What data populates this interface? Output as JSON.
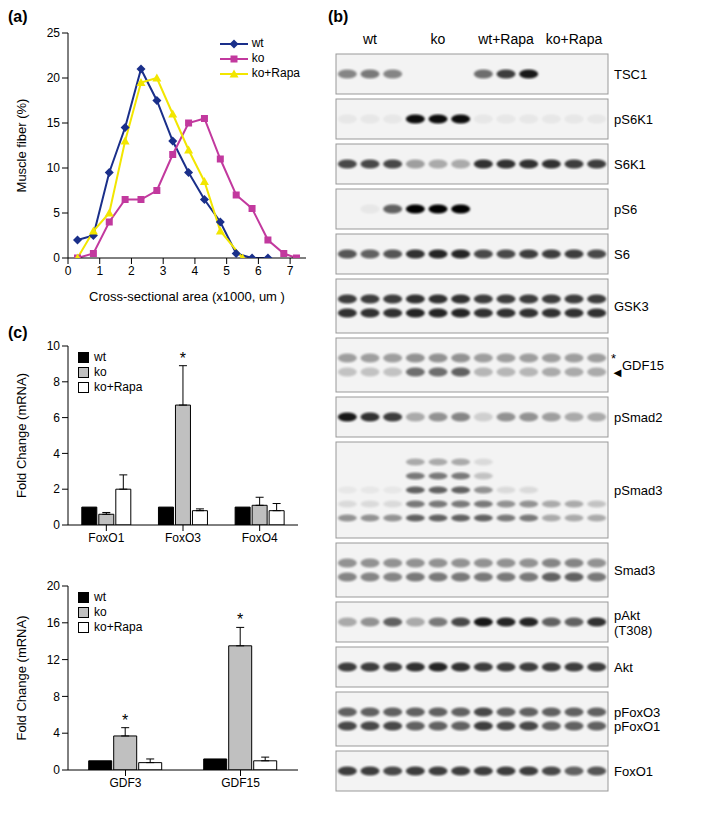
{
  "chart_data": [
    {
      "panel": "(a)",
      "type": "line",
      "x_label": "Cross-sectional area (x1000, um )",
      "y_label": "Muscle fiber (%)",
      "xlim": [
        0,
        7.5
      ],
      "xticks": [
        0,
        1,
        2,
        3,
        4,
        5,
        6,
        7
      ],
      "ylim": [
        0,
        25
      ],
      "yticks": [
        0,
        5,
        10,
        15,
        20,
        25
      ],
      "grid": false,
      "legend": "upper right",
      "series": [
        {
          "name": "wt",
          "color": "#1a2f8a",
          "marker": "diamond",
          "x": [
            0.3,
            0.8,
            1.3,
            1.8,
            2.3,
            2.8,
            3.3,
            3.8,
            4.3,
            4.8,
            5.3,
            5.8,
            6.3
          ],
          "values": [
            2,
            2.5,
            9.5,
            14.5,
            21,
            17.5,
            13,
            9.5,
            6.5,
            4,
            0.5,
            0,
            0
          ]
        },
        {
          "name": "ko",
          "color": "#c2399e",
          "marker": "square",
          "x": [
            0.3,
            0.8,
            1.3,
            1.8,
            2.3,
            2.8,
            3.3,
            3.8,
            4.3,
            4.8,
            5.3,
            5.8,
            6.3,
            6.8,
            7.2
          ],
          "values": [
            0,
            0.5,
            4,
            6.5,
            6.5,
            7.5,
            11.5,
            15,
            15.5,
            11,
            7,
            5.5,
            2,
            0.5,
            0
          ]
        },
        {
          "name": "ko+Rapa",
          "color": "#f2e600",
          "marker": "triangle",
          "x": [
            0.3,
            0.8,
            1.3,
            1.8,
            2.3,
            2.8,
            3.3,
            3.8,
            4.3,
            4.8,
            5.5
          ],
          "values": [
            0,
            3,
            5,
            13,
            19.5,
            20,
            16,
            12,
            8.5,
            3,
            0
          ]
        }
      ]
    },
    {
      "panel": "(c)",
      "type": "bar",
      "y_label": "Fold Change (mRNA)",
      "categories": [
        "FoxO1",
        "FoxO3",
        "FoxO4"
      ],
      "ylim": [
        0,
        10
      ],
      "yticks": [
        0,
        2,
        4,
        6,
        8,
        10
      ],
      "grid": false,
      "legend": "upper left",
      "series": [
        {
          "name": "wt",
          "color": "#000000",
          "values": [
            1,
            1,
            1
          ]
        },
        {
          "name": "ko",
          "color": "#c0c0c0",
          "values": [
            0.6,
            6.7,
            1.1
          ],
          "errors": [
            0.1,
            2.2,
            0.45
          ]
        },
        {
          "name": "ko+Rapa",
          "color": "#ffffff",
          "values": [
            2.0,
            0.8,
            0.8
          ],
          "errors": [
            0.8,
            0.1,
            0.4
          ]
        }
      ],
      "annotations": [
        {
          "category": "FoxO3",
          "series": "ko",
          "text": "*"
        }
      ]
    },
    {
      "type": "bar",
      "y_label": "Fold Change (mRNA)",
      "categories": [
        "GDF3",
        "GDF15"
      ],
      "ylim": [
        0,
        20
      ],
      "yticks": [
        0,
        4,
        8,
        12,
        16,
        20
      ],
      "grid": false,
      "legend": "upper left",
      "series": [
        {
          "name": "wt",
          "color": "#000000",
          "values": [
            1,
            1.2
          ]
        },
        {
          "name": "ko",
          "color": "#c0c0c0",
          "values": [
            3.7,
            13.5
          ],
          "errors": [
            0.9,
            2.0
          ]
        },
        {
          "name": "ko+Rapa",
          "color": "#ffffff",
          "values": [
            0.8,
            1.0
          ],
          "errors": [
            0.4,
            0.4
          ]
        }
      ],
      "annotations": [
        {
          "category": "GDF3",
          "series": "ko",
          "text": "*"
        },
        {
          "category": "GDF15",
          "series": "ko",
          "text": "*"
        }
      ]
    }
  ],
  "blot": {
    "panel": "(b)",
    "lanes": [
      {
        "label": "wt",
        "count": 3
      },
      {
        "label": "ko",
        "count": 3
      },
      {
        "label": "wt+Rapa",
        "count": 3
      },
      {
        "label": "ko+Rapa",
        "count": 3
      }
    ],
    "rows": [
      {
        "label": [
          "TSC1"
        ],
        "bands": [
          [
            0.45,
            0.5,
            0.45,
            0,
            0,
            0,
            0.55,
            0.75,
            0.9,
            0,
            0,
            0
          ]
        ]
      },
      {
        "label": [
          "pS6K1"
        ],
        "bands": [
          [
            0.05,
            0.05,
            0.05,
            0.95,
            0.95,
            0.95,
            0.05,
            0.05,
            0.05,
            0.05,
            0.05,
            0.05
          ]
        ]
      },
      {
        "label": [
          "S6K1"
        ],
        "bands": [
          [
            0.7,
            0.7,
            0.7,
            0.35,
            0.3,
            0.3,
            0.8,
            0.8,
            0.8,
            0.8,
            0.75,
            0.75
          ]
        ]
      },
      {
        "label": [
          "pS6"
        ],
        "bands": [
          [
            0,
            0.05,
            0.6,
            1,
            1,
            1,
            0,
            0,
            0,
            0,
            0,
            0
          ]
        ]
      },
      {
        "label": [
          "S6"
        ],
        "bands": [
          [
            0.65,
            0.6,
            0.65,
            0.8,
            0.85,
            0.85,
            0.7,
            0.7,
            0.75,
            0.75,
            0.75,
            0.7
          ]
        ]
      },
      {
        "label": [
          "GSK3"
        ],
        "bands": [
          [
            0.75,
            0.75,
            0.75,
            0.8,
            0.8,
            0.8,
            0.75,
            0.75,
            0.75,
            0.75,
            0.75,
            0.75
          ],
          [
            0.8,
            0.8,
            0.8,
            0.85,
            0.85,
            0.85,
            0.8,
            0.8,
            0.8,
            0.8,
            0.8,
            0.8
          ]
        ]
      },
      {
        "label": [
          "GDF15"
        ],
        "marks": [
          "*",
          "◄"
        ],
        "bands": [
          [
            0.35,
            0.35,
            0.35,
            0.4,
            0.4,
            0.4,
            0.35,
            0.35,
            0.35,
            0.35,
            0.35,
            0.35
          ],
          [
            0.2,
            0.2,
            0.2,
            0.55,
            0.55,
            0.6,
            0.25,
            0.25,
            0.25,
            0.3,
            0.3,
            0.3
          ]
        ]
      },
      {
        "label": [
          "pSmad2"
        ],
        "bands": [
          [
            0.9,
            0.8,
            0.75,
            0.3,
            0.4,
            0.45,
            0.15,
            0.4,
            0.4,
            0.35,
            0.3,
            0.3
          ]
        ]
      },
      {
        "label": [
          "pSmad3"
        ],
        "bands": [
          [
            0,
            0,
            0,
            0.3,
            0.3,
            0.3,
            0.1,
            0,
            0,
            0,
            0,
            0
          ],
          [
            0,
            0,
            0,
            0.5,
            0.5,
            0.5,
            0.2,
            0,
            0,
            0,
            0,
            0
          ],
          [
            0.05,
            0.05,
            0.05,
            0.6,
            0.6,
            0.6,
            0.4,
            0.1,
            0.1,
            0,
            0,
            0
          ],
          [
            0.1,
            0.1,
            0.1,
            0.5,
            0.5,
            0.5,
            0.5,
            0.4,
            0.4,
            0.3,
            0.3,
            0.2
          ],
          [
            0.4,
            0.4,
            0.4,
            0.6,
            0.6,
            0.6,
            0.6,
            0.5,
            0.5,
            0.3,
            0.3,
            0.3
          ]
        ]
      },
      {
        "label": [
          "Smad3"
        ],
        "bands": [
          [
            0.4,
            0.4,
            0.4,
            0.4,
            0.4,
            0.4,
            0.4,
            0.4,
            0.4,
            0.45,
            0.45,
            0.4
          ],
          [
            0.45,
            0.45,
            0.45,
            0.5,
            0.5,
            0.5,
            0.5,
            0.5,
            0.5,
            0.6,
            0.6,
            0.5
          ]
        ]
      },
      {
        "label": [
          "pAkt",
          "(T308)"
        ],
        "bands": [
          [
            0.3,
            0.4,
            0.6,
            0.3,
            0.5,
            0.7,
            0.9,
            0.85,
            0.85,
            0.6,
            0.6,
            0.8
          ]
        ]
      },
      {
        "label": [
          "Akt"
        ],
        "bands": [
          [
            0.75,
            0.75,
            0.75,
            0.8,
            0.85,
            0.8,
            0.75,
            0.75,
            0.75,
            0.75,
            0.75,
            0.75
          ]
        ]
      },
      {
        "label": [
          "pFoxO3",
          "pFoxO1"
        ],
        "bands": [
          [
            0.6,
            0.6,
            0.6,
            0.6,
            0.6,
            0.6,
            0.7,
            0.6,
            0.6,
            0.6,
            0.6,
            0.6
          ],
          [
            0.7,
            0.7,
            0.7,
            0.6,
            0.6,
            0.6,
            0.75,
            0.7,
            0.7,
            0.6,
            0.6,
            0.6
          ]
        ]
      },
      {
        "label": [
          "FoxO1"
        ],
        "bands": [
          [
            0.75,
            0.75,
            0.7,
            0.75,
            0.75,
            0.75,
            0.75,
            0.75,
            0.75,
            0.7,
            0.6,
            0.65
          ]
        ]
      }
    ]
  }
}
